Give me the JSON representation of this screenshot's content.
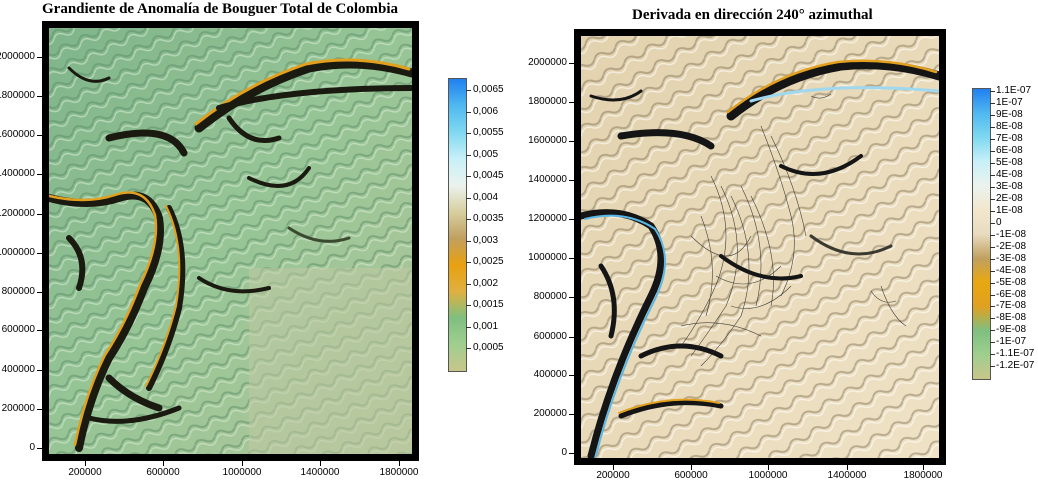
{
  "left_map": {
    "title": "Grandiente de Anomalía de Bouguer Total de Colombia",
    "y_ticks": [
      "0",
      "200000",
      "400000",
      "600000",
      "800000",
      "1000000",
      "1200000",
      "1400000",
      "1600000",
      "1800000",
      "2000000"
    ],
    "x_ticks": [
      "200000",
      "600000",
      "1000000",
      "1400000",
      "1800000"
    ],
    "colorbar_labels": [
      "0,0005",
      "0,001",
      "0,0015",
      "0,002",
      "0,0025",
      "0,003",
      "0,0035",
      "0,004",
      "0,0045",
      "0,005",
      "0,0055",
      "0,006",
      "0,0065"
    ],
    "colorbar_colors": [
      "#c9c58a",
      "#9fcf8f",
      "#7fbf7f",
      "#e0b040",
      "#e8a010",
      "#c0a060",
      "#d8cfa0",
      "#eaf3ee",
      "#c8f0f8",
      "#80d8f0",
      "#50b8f0",
      "#2080f0"
    ]
  },
  "right_map": {
    "title": "Derivada en dirección 240° azimuthal",
    "y_ticks": [
      "0",
      "200000",
      "400000",
      "600000",
      "800000",
      "1000000",
      "1200000",
      "1400000",
      "1600000",
      "1800000",
      "2000000"
    ],
    "x_ticks": [
      "200000",
      "600000",
      "1000000",
      "1400000",
      "1800000"
    ],
    "colorbar_labels": [
      "-1.2E-07",
      "-1.1E-07",
      "-1E-07",
      "-9E-08",
      "-8E-08",
      "-7E-08",
      "-6E-08",
      "-5E-08",
      "-4E-08",
      "-3E-08",
      "-2E-08",
      "-1E-08",
      "0",
      "1E-08",
      "2E-08",
      "3E-08",
      "4E-08",
      "5E-08",
      "6E-08",
      "7E-08",
      "8E-08",
      "9E-08",
      "1E-07",
      "1.1E-07"
    ],
    "colorbar_colors": [
      "#c9c58a",
      "#9fcf8f",
      "#7fbf7f",
      "#e0a020",
      "#e8a810",
      "#c0a060",
      "#e8dcc0",
      "#f2e6cc",
      "#eaf3ee",
      "#c8f0f8",
      "#80d8f0",
      "#50b8f0",
      "#2080f0"
    ]
  }
}
